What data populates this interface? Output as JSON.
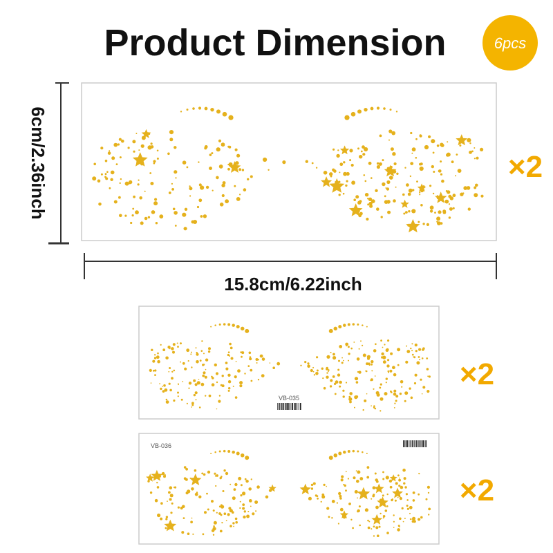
{
  "header": {
    "title": "Product Dimension",
    "badge": "6pcs"
  },
  "dimensions": {
    "height": "6cm/2.36inch",
    "width": "15.8cm/6.22inch"
  },
  "stickers": [
    {
      "multiplier": "×2"
    },
    {
      "multiplier": "×2",
      "code": "VB-035"
    },
    {
      "multiplier": "×2",
      "code": "VB-036"
    }
  ]
}
